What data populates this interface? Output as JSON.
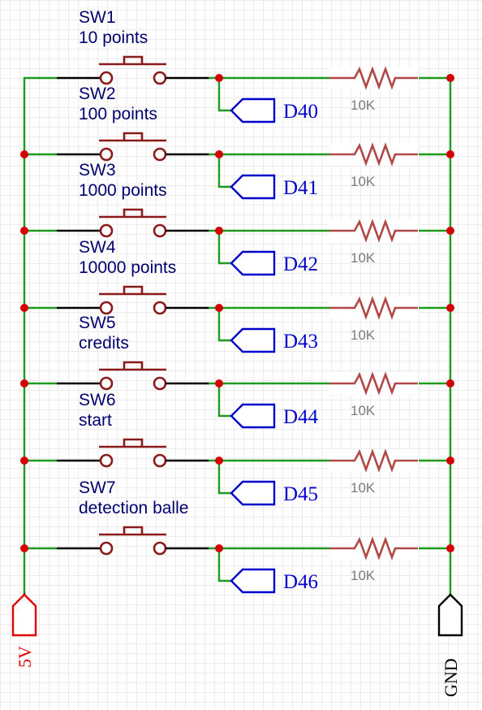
{
  "diagram": {
    "rails": {
      "left_label": "5V",
      "right_label": "GND"
    },
    "rows": [
      {
        "switch_name": "SW1",
        "switch_desc": "10 points",
        "net": "D40",
        "resistor": "10K"
      },
      {
        "switch_name": "SW2",
        "switch_desc": "100 points",
        "net": "D41",
        "resistor": "10K"
      },
      {
        "switch_name": "SW3",
        "switch_desc": "1000 points",
        "net": "D42",
        "resistor": "10K"
      },
      {
        "switch_name": "SW4",
        "switch_desc": "10000 points",
        "net": "D43",
        "resistor": "10K"
      },
      {
        "switch_name": "SW5",
        "switch_desc": "credits",
        "net": "D44",
        "resistor": "10K"
      },
      {
        "switch_name": "SW6",
        "switch_desc": "start",
        "net": "D45",
        "resistor": "10K"
      },
      {
        "switch_name": "SW7",
        "switch_desc": "detection balle",
        "net": "D46",
        "resistor": "10K"
      }
    ],
    "colors": {
      "wire": "#1e9a1e",
      "switch": "#8b1a1a",
      "resistor": "#b04848",
      "junction": "#d40000",
      "net_flag": "#0000cc",
      "supply_5v": "#e00000",
      "ground": "#000000"
    }
  }
}
